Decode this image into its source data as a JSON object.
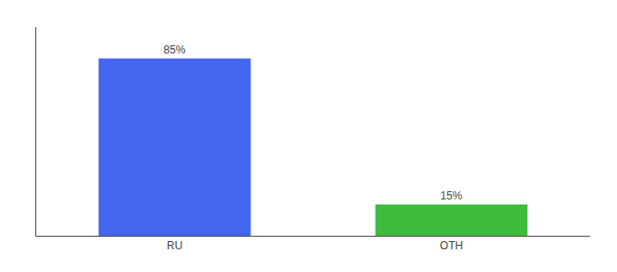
{
  "chart_data": {
    "type": "bar",
    "categories": [
      "RU",
      "OTH"
    ],
    "values": [
      85,
      15
    ],
    "value_labels": [
      "85%",
      "15%"
    ],
    "colors": [
      "#4466ee",
      "#3dbb3d"
    ],
    "ylim": [
      0,
      100
    ],
    "data_labels": true,
    "tick_labels": "x",
    "grid": false
  }
}
